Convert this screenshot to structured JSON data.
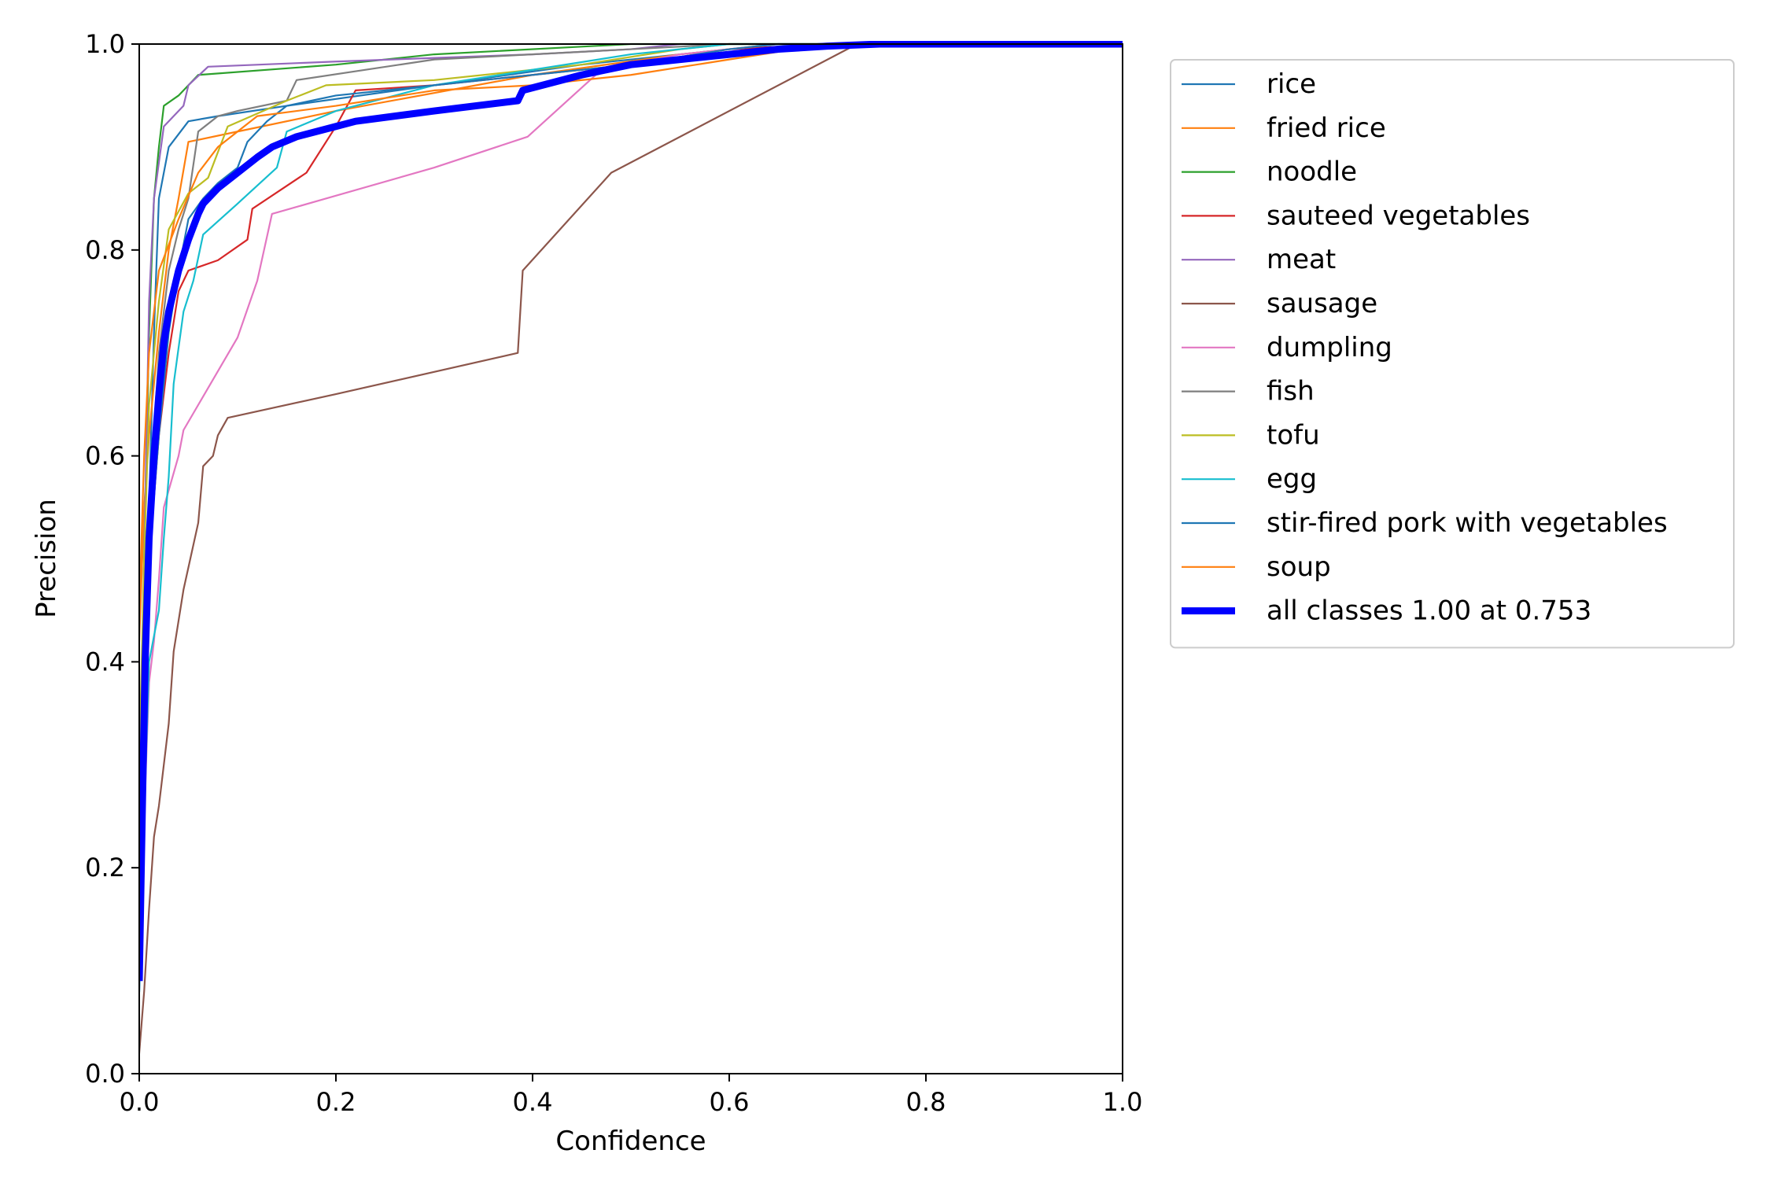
{
  "chart_data": {
    "type": "line",
    "title": "",
    "xlabel": "Confidence",
    "ylabel": "Precision",
    "xlim": [
      0.0,
      1.0
    ],
    "ylim": [
      0.0,
      1.0
    ],
    "xticks": [
      "0.0",
      "0.2",
      "0.4",
      "0.6",
      "0.8",
      "1.0"
    ],
    "yticks": [
      "0.0",
      "0.2",
      "0.4",
      "0.6",
      "0.8",
      "1.0"
    ],
    "grid": false,
    "legend_position": "outside-upper-right",
    "series": [
      {
        "name": "rice",
        "color": "#1f77b4",
        "points": [
          [
            0.0,
            0.1
          ],
          [
            0.005,
            0.35
          ],
          [
            0.01,
            0.55
          ],
          [
            0.015,
            0.72
          ],
          [
            0.02,
            0.85
          ],
          [
            0.03,
            0.9
          ],
          [
            0.05,
            0.925
          ],
          [
            0.08,
            0.93
          ],
          [
            0.15,
            0.94
          ],
          [
            0.3,
            0.96
          ],
          [
            0.45,
            0.98
          ],
          [
            0.6,
            0.995
          ],
          [
            0.7,
            1.0
          ],
          [
            1.0,
            1.0
          ]
        ]
      },
      {
        "name": "fried rice",
        "color": "#ff7f0e",
        "points": [
          [
            0.0,
            0.42
          ],
          [
            0.005,
            0.55
          ],
          [
            0.01,
            0.62
          ],
          [
            0.02,
            0.72
          ],
          [
            0.03,
            0.8
          ],
          [
            0.04,
            0.85
          ],
          [
            0.05,
            0.905
          ],
          [
            0.1,
            0.915
          ],
          [
            0.2,
            0.935
          ],
          [
            0.4,
            0.97
          ],
          [
            0.55,
            0.99
          ],
          [
            0.65,
            1.0
          ],
          [
            1.0,
            1.0
          ]
        ]
      },
      {
        "name": "noodle",
        "color": "#2ca02c",
        "points": [
          [
            0.0,
            0.2
          ],
          [
            0.005,
            0.5
          ],
          [
            0.01,
            0.72
          ],
          [
            0.015,
            0.85
          ],
          [
            0.02,
            0.9
          ],
          [
            0.025,
            0.94
          ],
          [
            0.04,
            0.95
          ],
          [
            0.06,
            0.97
          ],
          [
            0.2,
            0.98
          ],
          [
            0.3,
            0.99
          ],
          [
            0.5,
            1.0
          ],
          [
            1.0,
            1.0
          ]
        ]
      },
      {
        "name": "sauteed vegetables",
        "color": "#d62728",
        "points": [
          [
            0.0,
            0.1
          ],
          [
            0.005,
            0.3
          ],
          [
            0.01,
            0.5
          ],
          [
            0.02,
            0.62
          ],
          [
            0.03,
            0.7
          ],
          [
            0.04,
            0.76
          ],
          [
            0.05,
            0.78
          ],
          [
            0.08,
            0.79
          ],
          [
            0.11,
            0.81
          ],
          [
            0.115,
            0.84
          ],
          [
            0.17,
            0.875
          ],
          [
            0.2,
            0.92
          ],
          [
            0.22,
            0.955
          ],
          [
            0.3,
            0.96
          ],
          [
            0.4,
            0.97
          ],
          [
            0.5,
            0.98
          ],
          [
            0.6,
            0.995
          ],
          [
            0.7,
            1.0
          ],
          [
            1.0,
            1.0
          ]
        ]
      },
      {
        "name": "meat",
        "color": "#9467bd",
        "points": [
          [
            0.0,
            0.25
          ],
          [
            0.005,
            0.5
          ],
          [
            0.01,
            0.75
          ],
          [
            0.015,
            0.85
          ],
          [
            0.025,
            0.92
          ],
          [
            0.045,
            0.94
          ],
          [
            0.05,
            0.96
          ],
          [
            0.07,
            0.978
          ],
          [
            0.2,
            0.983
          ],
          [
            0.4,
            0.99
          ],
          [
            0.5,
            0.995
          ],
          [
            0.55,
            1.0
          ],
          [
            1.0,
            1.0
          ]
        ]
      },
      {
        "name": "sausage",
        "color": "#8c564b",
        "points": [
          [
            0.0,
            0.02
          ],
          [
            0.005,
            0.08
          ],
          [
            0.01,
            0.16
          ],
          [
            0.015,
            0.23
          ],
          [
            0.02,
            0.26
          ],
          [
            0.025,
            0.3
          ],
          [
            0.03,
            0.34
          ],
          [
            0.035,
            0.41
          ],
          [
            0.04,
            0.44
          ],
          [
            0.045,
            0.47
          ],
          [
            0.06,
            0.535
          ],
          [
            0.065,
            0.59
          ],
          [
            0.075,
            0.6
          ],
          [
            0.08,
            0.62
          ],
          [
            0.09,
            0.637
          ],
          [
            0.2,
            0.66
          ],
          [
            0.385,
            0.7
          ],
          [
            0.39,
            0.78
          ],
          [
            0.48,
            0.875
          ],
          [
            0.73,
            1.0
          ],
          [
            1.0,
            1.0
          ]
        ]
      },
      {
        "name": "dumpling",
        "color": "#e377c2",
        "points": [
          [
            0.0,
            0.1
          ],
          [
            0.005,
            0.25
          ],
          [
            0.01,
            0.38
          ],
          [
            0.015,
            0.42
          ],
          [
            0.02,
            0.48
          ],
          [
            0.025,
            0.55
          ],
          [
            0.04,
            0.6
          ],
          [
            0.045,
            0.625
          ],
          [
            0.1,
            0.715
          ],
          [
            0.12,
            0.77
          ],
          [
            0.135,
            0.835
          ],
          [
            0.3,
            0.88
          ],
          [
            0.395,
            0.91
          ],
          [
            0.47,
            0.975
          ],
          [
            0.55,
            0.99
          ],
          [
            0.65,
            1.0
          ],
          [
            1.0,
            1.0
          ]
        ]
      },
      {
        "name": "fish",
        "color": "#7f7f7f",
        "points": [
          [
            0.0,
            0.15
          ],
          [
            0.005,
            0.4
          ],
          [
            0.01,
            0.55
          ],
          [
            0.02,
            0.7
          ],
          [
            0.03,
            0.78
          ],
          [
            0.04,
            0.82
          ],
          [
            0.05,
            0.85
          ],
          [
            0.06,
            0.915
          ],
          [
            0.08,
            0.93
          ],
          [
            0.1,
            0.935
          ],
          [
            0.15,
            0.945
          ],
          [
            0.16,
            0.965
          ],
          [
            0.3,
            0.985
          ],
          [
            0.5,
            0.995
          ],
          [
            0.6,
            1.0
          ],
          [
            1.0,
            1.0
          ]
        ]
      },
      {
        "name": "tofu",
        "color": "#bcbd22",
        "points": [
          [
            0.0,
            0.3
          ],
          [
            0.005,
            0.5
          ],
          [
            0.01,
            0.65
          ],
          [
            0.02,
            0.75
          ],
          [
            0.03,
            0.82
          ],
          [
            0.05,
            0.855
          ],
          [
            0.07,
            0.87
          ],
          [
            0.09,
            0.92
          ],
          [
            0.15,
            0.945
          ],
          [
            0.19,
            0.96
          ],
          [
            0.3,
            0.965
          ],
          [
            0.45,
            0.98
          ],
          [
            0.55,
            0.995
          ],
          [
            0.6,
            1.0
          ],
          [
            1.0,
            1.0
          ]
        ]
      },
      {
        "name": "egg",
        "color": "#17becf",
        "points": [
          [
            0.0,
            0.08
          ],
          [
            0.005,
            0.25
          ],
          [
            0.01,
            0.4
          ],
          [
            0.02,
            0.45
          ],
          [
            0.025,
            0.52
          ],
          [
            0.03,
            0.58
          ],
          [
            0.035,
            0.67
          ],
          [
            0.04,
            0.705
          ],
          [
            0.045,
            0.74
          ],
          [
            0.05,
            0.755
          ],
          [
            0.055,
            0.77
          ],
          [
            0.065,
            0.815
          ],
          [
            0.1,
            0.845
          ],
          [
            0.14,
            0.88
          ],
          [
            0.15,
            0.915
          ],
          [
            0.2,
            0.935
          ],
          [
            0.3,
            0.96
          ],
          [
            0.4,
            0.975
          ],
          [
            0.5,
            0.99
          ],
          [
            0.6,
            1.0
          ],
          [
            1.0,
            1.0
          ]
        ]
      },
      {
        "name": "stir-fired pork with vegetables",
        "color": "#1f77b4",
        "points": [
          [
            0.0,
            0.08
          ],
          [
            0.005,
            0.3
          ],
          [
            0.01,
            0.5
          ],
          [
            0.02,
            0.62
          ],
          [
            0.03,
            0.72
          ],
          [
            0.04,
            0.78
          ],
          [
            0.05,
            0.83
          ],
          [
            0.065,
            0.85
          ],
          [
            0.08,
            0.865
          ],
          [
            0.1,
            0.88
          ],
          [
            0.11,
            0.905
          ],
          [
            0.13,
            0.925
          ],
          [
            0.15,
            0.94
          ],
          [
            0.2,
            0.95
          ],
          [
            0.3,
            0.96
          ],
          [
            0.4,
            0.97
          ],
          [
            0.5,
            0.98
          ],
          [
            0.6,
            0.995
          ],
          [
            0.65,
            1.0
          ],
          [
            1.0,
            1.0
          ]
        ]
      },
      {
        "name": "soup",
        "color": "#ff7f0e",
        "points": [
          [
            0.0,
            0.45
          ],
          [
            0.005,
            0.6
          ],
          [
            0.01,
            0.7
          ],
          [
            0.02,
            0.78
          ],
          [
            0.04,
            0.83
          ],
          [
            0.06,
            0.875
          ],
          [
            0.08,
            0.9
          ],
          [
            0.12,
            0.93
          ],
          [
            0.2,
            0.94
          ],
          [
            0.3,
            0.955
          ],
          [
            0.4,
            0.96
          ],
          [
            0.5,
            0.97
          ],
          [
            0.6,
            0.985
          ],
          [
            0.7,
            1.0
          ],
          [
            1.0,
            1.0
          ]
        ]
      },
      {
        "name": "all classes 1.00 at 0.753",
        "color": "#0000ff",
        "bold": true,
        "points": [
          [
            0.0,
            0.09
          ],
          [
            0.003,
            0.25
          ],
          [
            0.006,
            0.4
          ],
          [
            0.01,
            0.52
          ],
          [
            0.015,
            0.6
          ],
          [
            0.02,
            0.66
          ],
          [
            0.025,
            0.71
          ],
          [
            0.03,
            0.74
          ],
          [
            0.035,
            0.76
          ],
          [
            0.04,
            0.78
          ],
          [
            0.05,
            0.81
          ],
          [
            0.06,
            0.835
          ],
          [
            0.065,
            0.845
          ],
          [
            0.08,
            0.86
          ],
          [
            0.1,
            0.875
          ],
          [
            0.12,
            0.89
          ],
          [
            0.135,
            0.9
          ],
          [
            0.16,
            0.91
          ],
          [
            0.2,
            0.92
          ],
          [
            0.22,
            0.925
          ],
          [
            0.3,
            0.935
          ],
          [
            0.385,
            0.945
          ],
          [
            0.39,
            0.955
          ],
          [
            0.45,
            0.97
          ],
          [
            0.5,
            0.98
          ],
          [
            0.55,
            0.985
          ],
          [
            0.6,
            0.99
          ],
          [
            0.65,
            0.995
          ],
          [
            0.7,
            0.998
          ],
          [
            0.753,
            1.0
          ],
          [
            1.0,
            1.0
          ]
        ]
      }
    ]
  }
}
